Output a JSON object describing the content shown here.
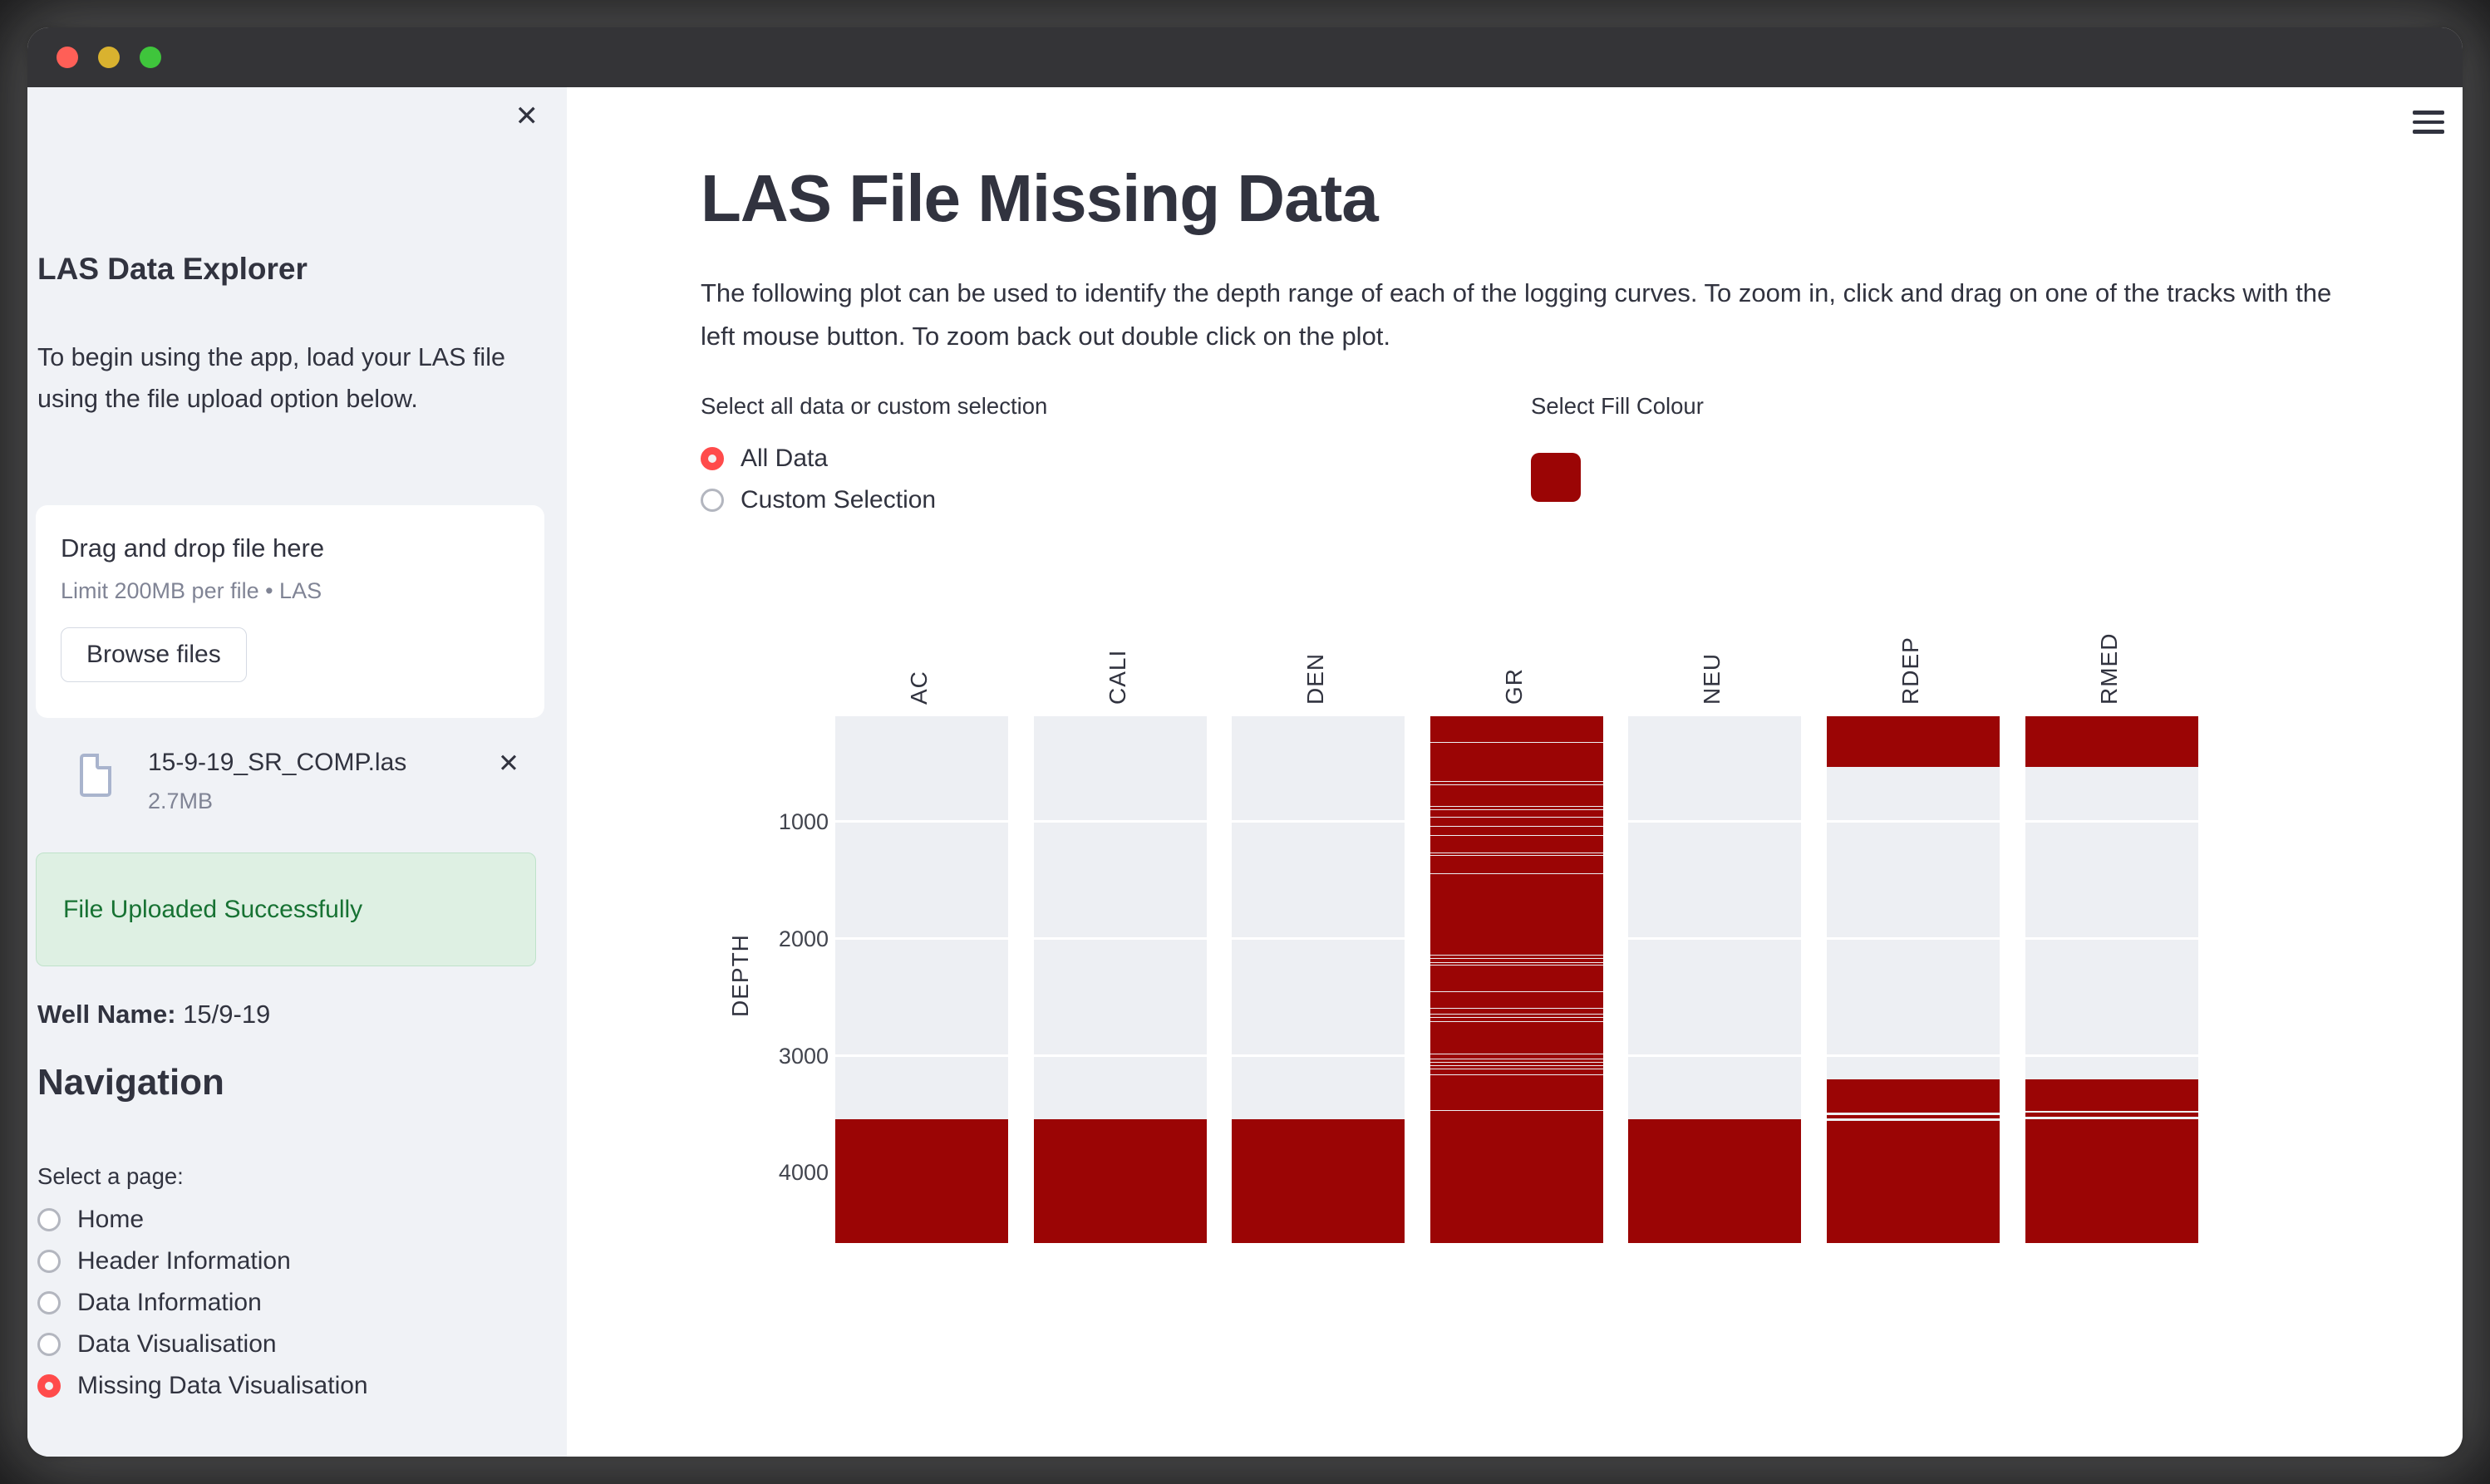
{
  "window": {
    "traffic_lights": [
      "#ff5f57",
      "#d9b22f",
      "#3fc53c"
    ],
    "titlebar_color": "#343437"
  },
  "sidebar": {
    "close_icon": "✕",
    "title": "LAS Data Explorer",
    "intro": "To begin using the app, load your LAS file using the file upload option below.",
    "uploader": {
      "prompt": "Drag and drop file here",
      "limit": "Limit 200MB per file • LAS",
      "browse_label": "Browse files"
    },
    "file": {
      "name": "15-9-19_SR_COMP.las",
      "size": "2.7MB",
      "remove_icon": "✕"
    },
    "success": "File Uploaded Successfully",
    "well_label": "Well Name:",
    "well_value": " 15/9-19",
    "nav_title": "Navigation",
    "nav_label": "Select a page:",
    "nav_items": [
      {
        "label": "Home",
        "selected": false
      },
      {
        "label": "Header Information",
        "selected": false
      },
      {
        "label": "Data Information",
        "selected": false
      },
      {
        "label": "Data Visualisation",
        "selected": false
      },
      {
        "label": "Missing Data Visualisation",
        "selected": true
      }
    ],
    "accent_color": "#ff4b4b"
  },
  "main": {
    "title": "LAS File Missing Data",
    "description": "The following plot can be used to identify the depth range of each of the logging curves. To zoom in, click and drag on one of the tracks with the left mouse button. To zoom back out double click on the plot.",
    "radio_label": "Select all data or custom selection",
    "radio_options": [
      {
        "label": "All Data",
        "selected": true
      },
      {
        "label": "Custom Selection",
        "selected": false
      }
    ],
    "fill_label": "Select Fill Colour",
    "fill_color": "#9b0505"
  },
  "chart_data": {
    "type": "heatmap",
    "title": "",
    "xlabel": "",
    "ylabel": "DEPTH",
    "curves": [
      "AC",
      "CALI",
      "DEN",
      "GR",
      "NEU",
      "RDEP",
      "RMED"
    ],
    "yticks": [
      1000,
      2000,
      3000,
      4000
    ],
    "depth_range": [
      100,
      4600
    ],
    "grid": true,
    "track_bg": "#edeff3",
    "gridline_color": "#ffffff",
    "fill_color": "#9b0505",
    "missing_depth_ranges": {
      "AC": [
        [
          3543,
          4600
        ]
      ],
      "CALI": [
        [
          3543,
          4600
        ]
      ],
      "DEN": [
        [
          3543,
          4600
        ]
      ],
      "GR": [
        [
          100,
          322
        ],
        [
          330,
          654
        ],
        [
          661,
          681
        ],
        [
          688,
          866
        ],
        [
          875,
          897
        ],
        [
          904,
          956
        ],
        [
          963,
          1037
        ],
        [
          1044,
          1118
        ],
        [
          1125,
          1262
        ],
        [
          1269,
          1284
        ],
        [
          1291,
          1442
        ],
        [
          1449,
          2135
        ],
        [
          2142,
          2166
        ],
        [
          2173,
          2198
        ],
        [
          2205,
          2220
        ],
        [
          2227,
          2450
        ],
        [
          2457,
          2594
        ],
        [
          2601,
          2639
        ],
        [
          2646,
          2670
        ],
        [
          2677,
          2702
        ],
        [
          2709,
          2985
        ],
        [
          2992,
          3026
        ],
        [
          3033,
          3053
        ],
        [
          3060,
          3080
        ],
        [
          3087,
          3111
        ],
        [
          3118,
          3161
        ],
        [
          3168,
          3462
        ],
        [
          3470,
          4600
        ]
      ],
      "NEU": [
        [
          3543,
          4600
        ]
      ],
      "RDEP": [
        [
          100,
          532
        ],
        [
          3200,
          3486
        ],
        [
          3504,
          3534
        ],
        [
          3559,
          4600
        ]
      ],
      "RMED": [
        [
          100,
          532
        ],
        [
          3200,
          3470
        ],
        [
          3489,
          3519
        ],
        [
          3545,
          4600
        ]
      ]
    }
  }
}
